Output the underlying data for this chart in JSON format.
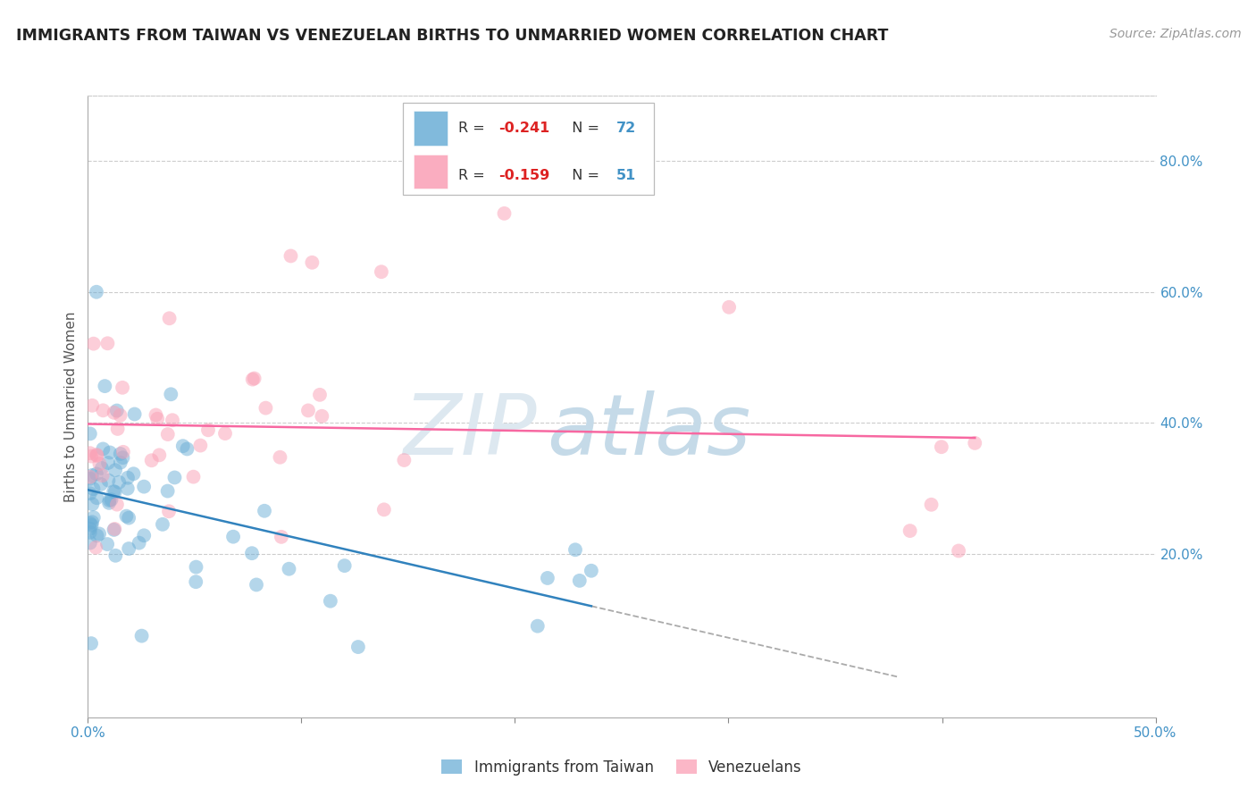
{
  "title": "IMMIGRANTS FROM TAIWAN VS VENEZUELAN BIRTHS TO UNMARRIED WOMEN CORRELATION CHART",
  "source": "Source: ZipAtlas.com",
  "ylabel_left": "Births to Unmarried Women",
  "legend_label1": "Immigrants from Taiwan",
  "legend_label2": "Venezuelans",
  "r1": -0.241,
  "n1": 72,
  "r2": -0.159,
  "n2": 51,
  "color_blue": "#6baed6",
  "color_pink": "#fa9fb5",
  "color_blue_line": "#3182bd",
  "color_pink_line": "#f768a1",
  "color_axis_text": "#4292c6",
  "xlim": [
    0.0,
    0.5
  ],
  "ylim": [
    -0.05,
    0.9
  ],
  "xtick_vals": [
    0.0,
    0.1,
    0.2,
    0.3,
    0.4,
    0.5
  ],
  "xtick_labels": [
    "0.0%",
    "",
    "",
    "",
    "",
    "50.0%"
  ],
  "yticks_right": [
    0.2,
    0.4,
    0.6,
    0.8
  ],
  "ytick_right_labels": [
    "20.0%",
    "40.0%",
    "60.0%",
    "80.0%"
  ],
  "watermark_zip": "ZIP",
  "watermark_atlas": "atlas",
  "watermark_color_zip": "#dde8f0",
  "watermark_color_atlas": "#c5dae8",
  "background_color": "#ffffff",
  "grid_color": "#cccccc",
  "blue_intercept": 0.285,
  "blue_slope": -0.72,
  "pink_intercept": 0.385,
  "pink_slope": -0.2,
  "seed": 17
}
